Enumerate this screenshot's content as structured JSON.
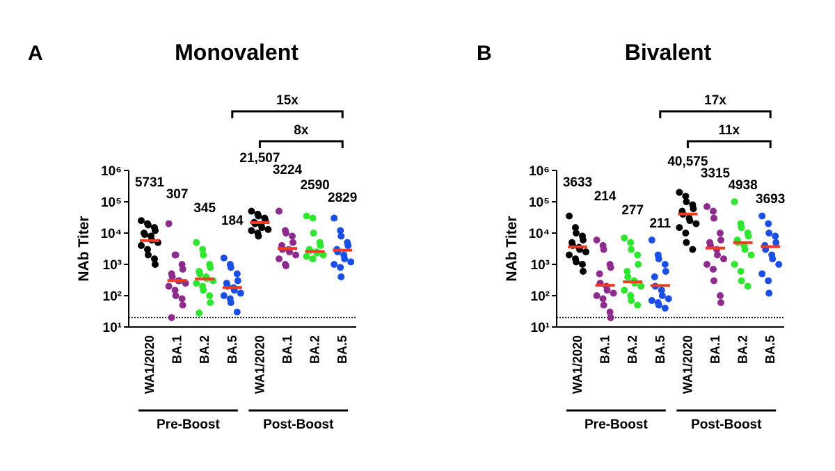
{
  "chart_data": [
    {
      "type": "scatter",
      "panel": "A",
      "title": "Monovalent",
      "ylabel": "NAb Titer",
      "log_scale": true,
      "ylim": [
        10,
        1000000
      ],
      "yticks": [
        {
          "value": 10,
          "label": "10¹"
        },
        {
          "value": 100,
          "label": "10²"
        },
        {
          "value": 1000,
          "label": "10³"
        },
        {
          "value": 10000,
          "label": "10⁴"
        },
        {
          "value": 100000,
          "label": "10⁵"
        },
        {
          "value": 1000000,
          "label": "10⁶"
        }
      ],
      "reference_line": 20,
      "categories": [
        "WA1/2020",
        "BA.1",
        "BA.2",
        "BA.5",
        "WA1/2020",
        "BA.1",
        "BA.2",
        "BA.5"
      ],
      "colors": [
        "#000000",
        "#8e2c8e",
        "#2ee62e",
        "#1a4fe6",
        "#000000",
        "#8e2c8e",
        "#2ee62e",
        "#1a4fe6"
      ],
      "median_color": "#ee3a22",
      "points": [
        [
          25000,
          20000,
          18000,
          15000,
          12000,
          10000,
          9000,
          8000,
          6000,
          5000,
          4000,
          3000,
          2000,
          1500,
          1000
        ],
        [
          20000,
          2000,
          2000,
          1000,
          700,
          500,
          400,
          300,
          300,
          250,
          200,
          150,
          100,
          80,
          50,
          20
        ],
        [
          5000,
          3000,
          2000,
          1000,
          800,
          600,
          500,
          400,
          350,
          300,
          250,
          200,
          150,
          100,
          60,
          28
        ],
        [
          1600,
          1000,
          800,
          500,
          300,
          250,
          200,
          180,
          150,
          120,
          100,
          80,
          60,
          30
        ],
        [
          50000,
          40000,
          35000,
          30000,
          25000,
          22000,
          20000,
          18000,
          15000,
          13000,
          12000,
          10000,
          8000
        ],
        [
          50000,
          12000,
          10000,
          8000,
          5000,
          4000,
          3000,
          3000,
          2500,
          2000,
          1500,
          1000,
          900
        ],
        [
          35000,
          30000,
          10000,
          5000,
          4000,
          3000,
          2800,
          2500,
          2300,
          2000,
          1800,
          1500
        ],
        [
          30000,
          12000,
          8000,
          5000,
          4000,
          3000,
          2500,
          2000,
          1500,
          1200,
          1000,
          800,
          400
        ]
      ],
      "values": [
        5731,
        307,
        345,
        184,
        21507,
        3224,
        2590,
        2829
      ],
      "value_labels": [
        "5731",
        "307",
        "345",
        "184",
        "21,507",
        "3224",
        "2590",
        "2829"
      ],
      "groups": [
        "Pre-Boost",
        "Post-Boost"
      ],
      "comparisons": [
        "15x",
        "8x"
      ]
    },
    {
      "type": "scatter",
      "panel": "B",
      "title": "Bivalent",
      "ylabel": "NAb Titer",
      "log_scale": true,
      "ylim": [
        10,
        1000000
      ],
      "yticks": [
        {
          "value": 10,
          "label": "10¹"
        },
        {
          "value": 100,
          "label": "10²"
        },
        {
          "value": 1000,
          "label": "10³"
        },
        {
          "value": 10000,
          "label": "10⁴"
        },
        {
          "value": 100000,
          "label": "10⁵"
        },
        {
          "value": 1000000,
          "label": "10⁶"
        }
      ],
      "reference_line": 20,
      "categories": [
        "WA1/2020",
        "BA.1",
        "BA.2",
        "BA.5",
        "WA1/2020",
        "BA.1",
        "BA.2",
        "BA.5"
      ],
      "colors": [
        "#000000",
        "#8e2c8e",
        "#2ee62e",
        "#1a4fe6",
        "#000000",
        "#8e2c8e",
        "#2ee62e",
        "#1a4fe6"
      ],
      "median_color": "#ee3a22",
      "points": [
        [
          35000,
          15000,
          10000,
          8000,
          6000,
          5000,
          4000,
          3500,
          3000,
          2500,
          2000,
          1500,
          1200,
          1000,
          600
        ],
        [
          6000,
          4000,
          3000,
          1000,
          800,
          500,
          250,
          200,
          150,
          120,
          100,
          80,
          50,
          30,
          20
        ],
        [
          7000,
          5000,
          3000,
          2000,
          1000,
          600,
          400,
          300,
          250,
          200,
          150,
          100,
          70,
          50
        ],
        [
          6000,
          2000,
          1500,
          1000,
          600,
          400,
          200,
          150,
          100,
          80,
          70,
          60,
          50,
          40
        ],
        [
          200000,
          150000,
          100000,
          80000,
          60000,
          50000,
          40000,
          30000,
          25000,
          20000,
          15000,
          10000,
          5000,
          3000
        ],
        [
          70000,
          50000,
          30000,
          10000,
          6000,
          5000,
          4000,
          3000,
          2000,
          1500,
          1000,
          700,
          300,
          100,
          60
        ],
        [
          100000,
          20000,
          15000,
          10000,
          8000,
          6000,
          5000,
          4000,
          3000,
          2000,
          1000,
          600,
          300,
          200
        ],
        [
          35000,
          20000,
          10000,
          8000,
          5000,
          4000,
          3000,
          2000,
          1500,
          1000,
          500,
          300,
          120
        ]
      ],
      "values": [
        3633,
        214,
        277,
        211,
        40575,
        3315,
        4938,
        3693
      ],
      "value_labels": [
        "3633",
        "214",
        "277",
        "211",
        "40,575",
        "3315",
        "4938",
        "3693"
      ],
      "groups": [
        "Pre-Boost",
        "Post-Boost"
      ],
      "comparisons": [
        "17x",
        "11x"
      ]
    }
  ]
}
